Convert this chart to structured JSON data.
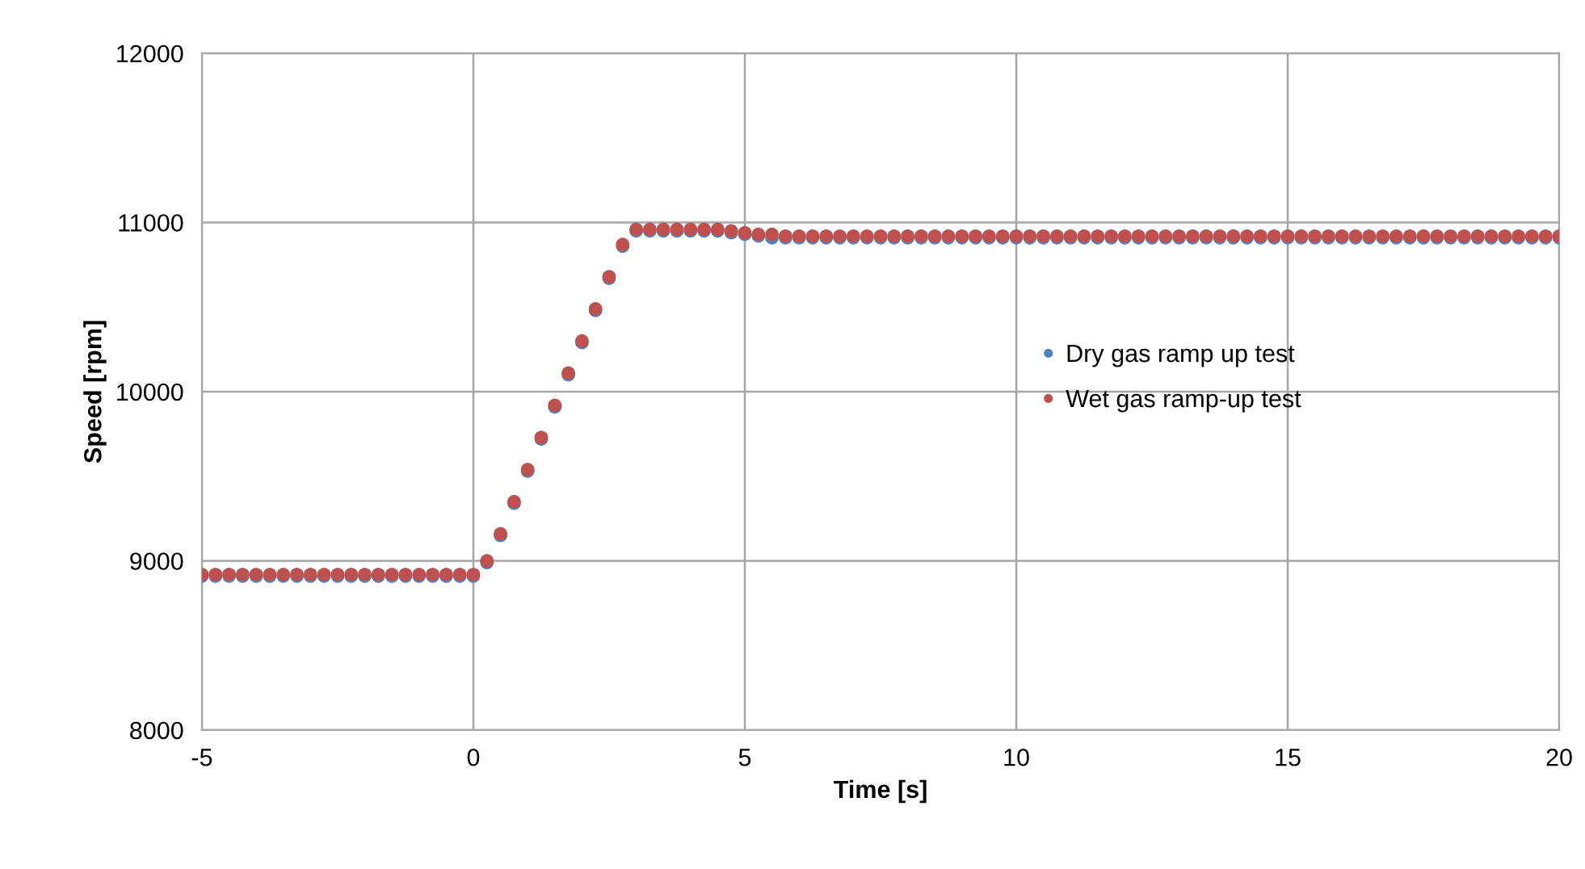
{
  "chart_data": {
    "type": "scatter",
    "xlabel": "Time [s]",
    "ylabel": "Speed [rpm]",
    "xlim": [
      -5,
      20
    ],
    "xticks": [
      -5,
      0,
      5,
      10,
      15,
      20
    ],
    "ylim": [
      8000,
      12000
    ],
    "yticks": [
      8000,
      9000,
      10000,
      11000,
      12000
    ],
    "grid": true,
    "legend": "right",
    "marker": "circle",
    "x": [
      -5,
      -4.75,
      -4.5,
      -4.25,
      -4,
      -3.75,
      -3.5,
      -3.25,
      -3,
      -2.75,
      -2.5,
      -2.25,
      -2,
      -1.75,
      -1.5,
      -1.25,
      -1,
      -0.75,
      -0.5,
      -0.25,
      0,
      0.25,
      0.5,
      0.75,
      1,
      1.25,
      1.5,
      1.75,
      2,
      2.25,
      2.5,
      2.75,
      3,
      3.25,
      3.5,
      3.75,
      4,
      4.25,
      4.5,
      4.75,
      5,
      5.25,
      5.5,
      5.75,
      6,
      6.25,
      6.5,
      6.75,
      7,
      7.25,
      7.5,
      7.75,
      8,
      8.25,
      8.5,
      8.75,
      9,
      9.25,
      9.5,
      9.75,
      10,
      10.25,
      10.5,
      10.75,
      11,
      11.25,
      11.5,
      11.75,
      12,
      12.25,
      12.5,
      12.75,
      13,
      13.25,
      13.5,
      13.75,
      14,
      14.25,
      14.5,
      14.75,
      15,
      15.25,
      15.5,
      15.75,
      16,
      16.25,
      16.5,
      16.75,
      17,
      17.25,
      17.5,
      17.75,
      18,
      18.25,
      18.5,
      18.75,
      19,
      19.25,
      19.5,
      19.75,
      20
    ],
    "series": [
      {
        "name": "Dry gas ramp up test",
        "color": "#4f81bd",
        "values": [
          8910,
          8910,
          8910,
          8910,
          8910,
          8910,
          8910,
          8910,
          8910,
          8910,
          8910,
          8910,
          8910,
          8910,
          8910,
          8910,
          8910,
          8910,
          8910,
          8910,
          8910,
          8990,
          9150,
          9340,
          9530,
          9720,
          9910,
          10100,
          10290,
          10480,
          10670,
          10860,
          10950,
          10950,
          10950,
          10950,
          10950,
          10950,
          10950,
          10940,
          10930,
          10920,
          10910,
          10910,
          10910,
          10910,
          10910,
          10910,
          10910,
          10910,
          10910,
          10910,
          10910,
          10910,
          10910,
          10910,
          10910,
          10910,
          10910,
          10910,
          10910,
          10910,
          10910,
          10910,
          10910,
          10910,
          10910,
          10910,
          10910,
          10910,
          10910,
          10910,
          10910,
          10910,
          10910,
          10910,
          10910,
          10910,
          10910,
          10910,
          10910,
          10910,
          10910,
          10910,
          10910,
          10910,
          10910,
          10910,
          10910,
          10910,
          10910,
          10910,
          10910,
          10910,
          10910,
          10910,
          10910,
          10910,
          10910,
          10910,
          10910
        ]
      },
      {
        "name": "Wet gas ramp-up test",
        "color": "#c0504d",
        "values": [
          8920,
          8920,
          8920,
          8920,
          8920,
          8920,
          8920,
          8920,
          8920,
          8920,
          8920,
          8920,
          8920,
          8920,
          8920,
          8920,
          8920,
          8920,
          8920,
          8920,
          8920,
          9000,
          9160,
          9350,
          9540,
          9730,
          9920,
          10110,
          10300,
          10490,
          10680,
          10870,
          10960,
          10960,
          10960,
          10960,
          10960,
          10960,
          10960,
          10950,
          10940,
          10930,
          10930,
          10920,
          10920,
          10920,
          10920,
          10920,
          10920,
          10920,
          10920,
          10920,
          10920,
          10920,
          10920,
          10920,
          10920,
          10920,
          10920,
          10920,
          10920,
          10920,
          10920,
          10920,
          10920,
          10920,
          10920,
          10920,
          10920,
          10920,
          10920,
          10920,
          10920,
          10920,
          10920,
          10920,
          10920,
          10920,
          10920,
          10920,
          10920,
          10920,
          10920,
          10920,
          10920,
          10920,
          10920,
          10920,
          10920,
          10920,
          10920,
          10920,
          10920,
          10920,
          10920,
          10920,
          10920,
          10920,
          10920,
          10920,
          10920
        ]
      }
    ]
  }
}
